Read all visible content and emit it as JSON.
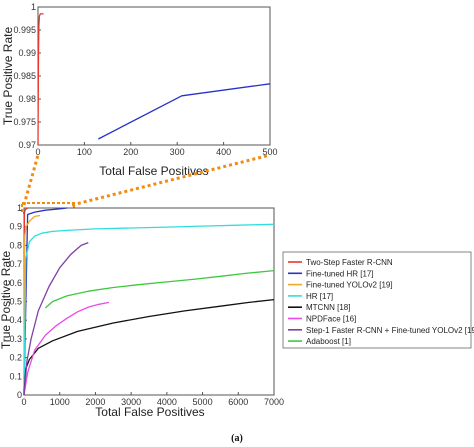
{
  "chart_data": [
    {
      "id": "inset",
      "type": "line",
      "xlabel": "Total False Positives",
      "ylabel": "True Positive Rate",
      "xlim": [
        0,
        500
      ],
      "ylim": [
        0.97,
        1.0
      ],
      "xticks": [
        0,
        100,
        200,
        300,
        400,
        500
      ],
      "xtick_labels": [
        "0",
        "100",
        "200",
        "300",
        "400",
        "500"
      ],
      "yticks": [
        0.97,
        0.975,
        0.98,
        0.985,
        0.99,
        0.995,
        1.0
      ],
      "ytick_labels": [
        "0.97",
        "0.975",
        "0.98",
        "0.985",
        "0.99",
        "0.995",
        "1"
      ],
      "grid": false,
      "series": [
        {
          "name": "Two-Step Faster R-CNN",
          "color": "#e8382b",
          "x": [
            0,
            1,
            2,
            3,
            5,
            8,
            12
          ],
          "y": [
            0.97,
            0.99,
            0.996,
            0.998,
            0.9985,
            0.9985,
            0.9985
          ]
        },
        {
          "name": "Fine-tuned HR [17]",
          "color": "#2832c8",
          "x": [
            130,
            310,
            500
          ],
          "y": [
            0.9713,
            0.9807,
            0.9833
          ]
        }
      ]
    },
    {
      "id": "main",
      "type": "line",
      "xlabel": "Total False Positives",
      "ylabel": "True Positive Rate",
      "xlim": [
        0,
        7000
      ],
      "ylim": [
        0,
        1.0
      ],
      "xticks": [
        0,
        1000,
        2000,
        3000,
        4000,
        5000,
        6000,
        7000
      ],
      "xtick_labels": [
        "0",
        "1000",
        "2000",
        "3000",
        "4000",
        "5000",
        "6000",
        "7000"
      ],
      "yticks": [
        0,
        0.1,
        0.2,
        0.3,
        0.4,
        0.5,
        0.6,
        0.7,
        0.8,
        0.9,
        1.0
      ],
      "ytick_labels": [
        "0",
        "0.1",
        "0.2",
        "0.3",
        "0.4",
        "0.5",
        "0.6",
        "0.7",
        "0.8",
        "0.9",
        "1"
      ],
      "grid": false,
      "legend_position": "right",
      "series": [
        {
          "name": "Two-Step Faster R-CNN",
          "color": "#e8382b",
          "x": [
            0,
            10,
            30,
            60,
            100
          ],
          "y": [
            0.0,
            0.97,
            0.99,
            0.995,
            0.998
          ]
        },
        {
          "name": "Fine-tuned HR [17]",
          "color": "#2832c8",
          "x": [
            0,
            100,
            300,
            600,
            1000,
            1200
          ],
          "y": [
            0.0,
            0.965,
            0.978,
            0.988,
            0.995,
            1.0
          ]
        },
        {
          "name": "Fine-tuned YOLOv2 [19]",
          "color": "#f5a623",
          "x": [
            0,
            20,
            60,
            150,
            300,
            450
          ],
          "y": [
            0.0,
            0.85,
            0.9,
            0.93,
            0.955,
            0.96
          ]
        },
        {
          "name": "HR [17]",
          "color": "#33dcdc",
          "x": [
            0,
            50,
            150,
            300,
            500,
            800,
            1200,
            2000,
            3000,
            4000,
            5000,
            6000,
            7000
          ],
          "y": [
            0.0,
            0.73,
            0.82,
            0.85,
            0.865,
            0.875,
            0.88,
            0.888,
            0.893,
            0.898,
            0.903,
            0.908,
            0.913
          ]
        },
        {
          "name": "MTCNN [18]",
          "color": "#111111",
          "x": [
            0,
            50,
            150,
            400,
            800,
            1500,
            2500,
            3500,
            4500,
            5500,
            6300,
            7000
          ],
          "y": [
            0.0,
            0.14,
            0.19,
            0.25,
            0.29,
            0.34,
            0.385,
            0.42,
            0.45,
            0.475,
            0.495,
            0.51
          ]
        },
        {
          "name": "NPDFace [16]",
          "color": "#e84ae8",
          "x": [
            0,
            100,
            300,
            600,
            900,
            1200,
            1500,
            1800,
            2100,
            2380
          ],
          "y": [
            0.0,
            0.12,
            0.24,
            0.32,
            0.37,
            0.41,
            0.445,
            0.47,
            0.485,
            0.495
          ]
        },
        {
          "name": "Step-1 Faster R-CNN + Fine-tuned YOLOv2 [19]",
          "color": "#8040a8",
          "x": [
            0,
            80,
            200,
            400,
            700,
            1000,
            1300,
            1600,
            1800
          ],
          "y": [
            0.0,
            0.18,
            0.3,
            0.45,
            0.58,
            0.68,
            0.75,
            0.8,
            0.815
          ]
        },
        {
          "name": "Adaboost [1]",
          "color": "#3ec83e",
          "x": [
            600,
            800,
            1200,
            1800,
            2500,
            3200,
            4000,
            4800,
            5500,
            6200,
            7000
          ],
          "y": [
            0.465,
            0.5,
            0.53,
            0.555,
            0.575,
            0.59,
            0.605,
            0.62,
            0.635,
            0.65,
            0.665
          ]
        }
      ]
    }
  ],
  "caption": "(a)",
  "zoom_indicator_color": "#f08c14"
}
